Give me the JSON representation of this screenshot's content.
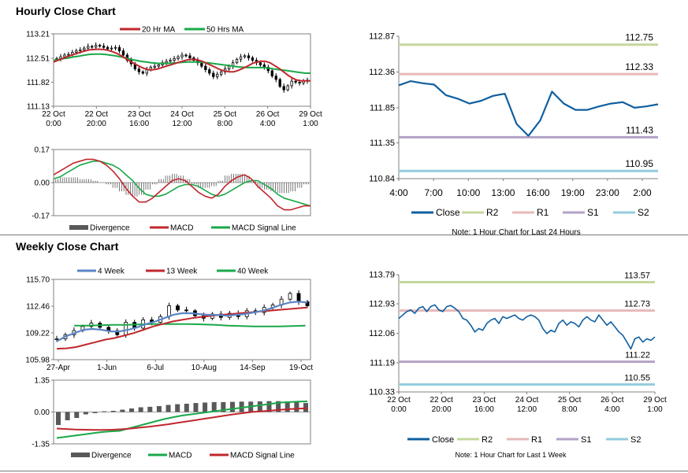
{
  "titles": {
    "hourly": "Hourly Close Chart",
    "weekly": "Weekly Close Chart"
  },
  "colors": {
    "ma20": "#c0272d",
    "ma50": "#1aa84a",
    "wk4": "#5b86c5",
    "wk13": "#c0272d",
    "wk40": "#1aa84a",
    "close": "#0f5fa0",
    "r2": "#c3d89b",
    "r1": "#e6b9b8",
    "s1": "#b3a2c7",
    "s2": "#93cddd",
    "divergence": "#595959",
    "candle": "#000000",
    "grid": "#bfbfbf"
  },
  "chart_data": [
    {
      "id": "hourly-price",
      "type": "candlestick",
      "title": "Hourly Close Chart",
      "y_ticks": [
        "113.21",
        "112.51",
        "111.82",
        "111.13"
      ],
      "ylim": [
        111.13,
        113.21
      ],
      "x_ticks": [
        {
          "date": "22 Oct",
          "time": "0:00"
        },
        {
          "date": "22 Oct",
          "time": "20:00"
        },
        {
          "date": "23 Oct",
          "time": "16:00"
        },
        {
          "date": "24 Oct",
          "time": "12:00"
        },
        {
          "date": "25 Oct",
          "time": "8:00"
        },
        {
          "date": "26 Oct",
          "time": "4:00"
        },
        {
          "date": "29 Oct",
          "time": "1:00"
        }
      ],
      "legend": [
        "20 Hr MA",
        "50 Hrs MA"
      ],
      "close": [
        112.5,
        112.55,
        112.6,
        112.62,
        112.68,
        112.72,
        112.75,
        112.8,
        112.85,
        112.83,
        112.88,
        112.86,
        112.82,
        112.78,
        112.8,
        112.82,
        112.72,
        112.6,
        112.45,
        112.35,
        112.2,
        112.12,
        112.08,
        112.18,
        112.25,
        112.28,
        112.32,
        112.38,
        112.42,
        112.45,
        112.5,
        112.55,
        112.6,
        112.58,
        112.52,
        112.45,
        112.38,
        112.28,
        112.18,
        112.08,
        111.98,
        112.05,
        112.12,
        112.2,
        112.28,
        112.38,
        112.48,
        112.55,
        112.58,
        112.52,
        112.45,
        112.38,
        112.32,
        112.25,
        112.15,
        112.0,
        111.9,
        111.7,
        111.6,
        111.72,
        111.85,
        111.82,
        111.8,
        111.85,
        111.88
      ],
      "ma20": [
        112.4,
        112.45,
        112.5,
        112.55,
        112.6,
        112.64,
        112.68,
        112.72,
        112.75,
        112.76,
        112.77,
        112.76,
        112.74,
        112.7,
        112.65,
        112.58,
        112.5,
        112.42,
        112.35,
        112.28,
        112.22,
        112.18,
        112.18,
        112.2,
        112.24,
        112.28,
        112.32,
        112.36,
        112.4,
        112.44,
        112.47,
        112.48,
        112.46,
        112.42,
        112.36,
        112.3,
        112.24,
        112.18,
        112.14,
        112.12,
        112.12,
        112.16,
        112.22,
        112.28,
        112.35,
        112.4,
        112.42,
        112.42,
        112.38,
        112.3,
        112.22,
        112.12,
        112.02,
        111.94,
        111.88,
        111.86,
        111.86,
        111.86
      ],
      "ma50": [
        112.45,
        112.47,
        112.5,
        112.52,
        112.55,
        112.57,
        112.6,
        112.62,
        112.63,
        112.63,
        112.62,
        112.6,
        112.58,
        112.55,
        112.52,
        112.48,
        112.45,
        112.42,
        112.4,
        112.38,
        112.37,
        112.36,
        112.36,
        112.37,
        112.38,
        112.39,
        112.4,
        112.4,
        112.4,
        112.39,
        112.38,
        112.36,
        112.34,
        112.32,
        112.3,
        112.28,
        112.26,
        112.25,
        112.24,
        112.24,
        112.24,
        112.24,
        112.22,
        112.2,
        112.18,
        112.16,
        112.14,
        112.12,
        112.1,
        112.08,
        112.08
      ]
    },
    {
      "id": "hourly-macd",
      "type": "macd",
      "y_ticks": [
        "0.17",
        "0.00",
        "-0.17"
      ],
      "ylim": [
        -0.17,
        0.17
      ],
      "legend": [
        "Divergence",
        "MACD",
        "MACD Signal Line"
      ],
      "macd": [
        0.04,
        0.06,
        0.08,
        0.1,
        0.11,
        0.12,
        0.12,
        0.11,
        0.09,
        0.06,
        0.02,
        -0.03,
        -0.07,
        -0.1,
        -0.1,
        -0.08,
        -0.05,
        -0.02,
        0.01,
        0.02,
        0.01,
        -0.02,
        -0.05,
        -0.07,
        -0.08,
        -0.06,
        -0.02,
        0.01,
        0.03,
        0.04,
        0.02,
        -0.02,
        -0.05,
        -0.08,
        -0.12,
        -0.14,
        -0.14,
        -0.13,
        -0.12,
        -0.12
      ],
      "signal": [
        0.02,
        0.03,
        0.05,
        0.07,
        0.09,
        0.1,
        0.11,
        0.11,
        0.1,
        0.09,
        0.07,
        0.04,
        0.01,
        -0.03,
        -0.06,
        -0.07,
        -0.07,
        -0.06,
        -0.04,
        -0.02,
        -0.01,
        -0.01,
        -0.02,
        -0.04,
        -0.06,
        -0.07,
        -0.06,
        -0.04,
        -0.02,
        0.0,
        0.01,
        0.01,
        -0.01,
        -0.03,
        -0.06,
        -0.08,
        -0.09,
        -0.1,
        -0.11,
        -0.12
      ]
    },
    {
      "id": "hourly-levels",
      "type": "line",
      "y_ticks": [
        "112.87",
        "112.36",
        "111.85",
        "111.35",
        "110.84"
      ],
      "ylim": [
        110.84,
        112.87
      ],
      "x_ticks": [
        "4:00",
        "7:00",
        "10:00",
        "13:00",
        "16:00",
        "19:00",
        "23:00",
        "2:00"
      ],
      "close": [
        112.17,
        112.23,
        112.2,
        112.18,
        112.03,
        111.98,
        111.91,
        111.95,
        112.02,
        112.05,
        111.62,
        111.45,
        111.67,
        112.08,
        111.91,
        111.82,
        111.82,
        111.87,
        111.91,
        111.93,
        111.85,
        111.87,
        111.9
      ],
      "levels": {
        "R2": 112.75,
        "R1": 112.33,
        "S1": 111.43,
        "S2": 110.95
      },
      "level_labels": {
        "R2": "112.75",
        "R1": "112.33",
        "S1": "111.43",
        "S2": "110.95"
      },
      "legend": [
        "Close",
        "R2",
        "R1",
        "S1",
        "S2"
      ],
      "note": "Note: 1 Hour Chart for Last 24 Hours"
    },
    {
      "id": "weekly-price",
      "type": "candlestick",
      "title": "Weekly Close Chart",
      "y_ticks": [
        "115.70",
        "112.46",
        "109.22",
        "105.98"
      ],
      "ylim": [
        105.98,
        115.7
      ],
      "x_ticks": [
        "27-Apr",
        "1-Jun",
        "6-Jul",
        "10-Aug",
        "14-Sep",
        "19-Oct"
      ],
      "legend": [
        "4 Week",
        "13 Week",
        "40 Week"
      ],
      "close": [
        108.5,
        109.0,
        109.5,
        110.0,
        110.4,
        109.9,
        109.5,
        109.0,
        110.5,
        109.8,
        110.8,
        110.5,
        111.2,
        112.5,
        112.0,
        111.9,
        111.3,
        111.0,
        111.5,
        111.1,
        111.6,
        111.2,
        111.9,
        111.7,
        112.3,
        112.6,
        113.3,
        114.0,
        113.0,
        112.5
      ],
      "wk4": [
        108.2,
        108.8,
        109.2,
        109.6,
        109.7,
        109.6,
        109.4,
        109.4,
        109.6,
        109.9,
        110.3,
        110.6,
        111.0,
        111.4,
        111.6,
        111.6,
        111.5,
        111.4,
        111.4,
        111.3,
        111.4,
        111.5,
        111.7,
        111.9,
        112.2,
        112.6,
        112.9,
        113.0,
        112.9
      ],
      "wk13": [
        107.3,
        107.35,
        107.5,
        107.8,
        108.1,
        108.4,
        108.6,
        108.9,
        109.2,
        109.6,
        110.0,
        110.3,
        110.6,
        110.8,
        111.0,
        111.15,
        111.3,
        111.4,
        111.5,
        111.6,
        111.7,
        111.8,
        111.9,
        112.0,
        112.1,
        112.2,
        112.3
      ],
      "wk40": [
        110.1,
        110.1,
        110.15,
        110.2,
        110.2,
        110.25,
        110.3,
        110.3,
        110.3,
        110.3,
        110.25,
        110.2,
        110.1,
        110.05,
        110.0,
        110.0,
        110.0,
        110.05,
        110.1
      ]
    },
    {
      "id": "weekly-macd",
      "type": "macd",
      "y_ticks": [
        "1.35",
        "0.00",
        "-1.35"
      ],
      "ylim": [
        -1.35,
        1.35
      ],
      "legend": [
        "Divergence",
        "MACD",
        "MACD Signal Line"
      ],
      "divergence": [
        -0.55,
        -0.35,
        -0.25,
        -0.1,
        -0.05,
        0.03,
        0.05,
        0.1,
        0.15,
        0.2,
        0.22,
        0.25,
        0.3,
        0.33,
        0.35,
        0.38,
        0.4,
        0.42,
        0.42,
        0.43,
        0.44,
        0.44,
        0.45,
        0.46,
        0.46,
        0.45,
        0.42,
        0.38
      ],
      "macd": [
        -1.1,
        -1.05,
        -1.0,
        -0.95,
        -0.9,
        -0.85,
        -0.82,
        -0.8,
        -0.7,
        -0.6,
        -0.5,
        -0.4,
        -0.3,
        -0.22,
        -0.15,
        -0.1,
        -0.05,
        0.0,
        0.05,
        0.1,
        0.15,
        0.2,
        0.25,
        0.3,
        0.35,
        0.4,
        0.42,
        0.44,
        0.45
      ],
      "signal": [
        -0.7,
        -0.72,
        -0.74,
        -0.75,
        -0.76,
        -0.76,
        -0.75,
        -0.73,
        -0.7,
        -0.66,
        -0.62,
        -0.57,
        -0.52,
        -0.46,
        -0.4,
        -0.34,
        -0.28,
        -0.22,
        -0.16,
        -0.1,
        -0.05,
        0.0,
        0.03,
        0.06,
        0.09,
        0.12,
        0.14,
        0.16
      ]
    },
    {
      "id": "weekly-levels",
      "type": "line",
      "y_ticks": [
        "113.79",
        "112.93",
        "112.06",
        "111.19",
        "110.33"
      ],
      "ylim": [
        110.33,
        113.79
      ],
      "x_ticks": [
        {
          "date": "22 Oct",
          "time": "0:00"
        },
        {
          "date": "22 Oct",
          "time": "20:00"
        },
        {
          "date": "23 Oct",
          "time": "16:00"
        },
        {
          "date": "24 Oct",
          "time": "12:00"
        },
        {
          "date": "25 Oct",
          "time": "8:00"
        },
        {
          "date": "26 Oct",
          "time": "4:00"
        },
        {
          "date": "29 Oct",
          "time": "1:00"
        }
      ],
      "close": [
        112.5,
        112.6,
        112.7,
        112.75,
        112.65,
        112.8,
        112.85,
        112.7,
        112.85,
        112.9,
        112.75,
        112.7,
        112.85,
        112.88,
        112.8,
        112.7,
        112.5,
        112.45,
        112.3,
        112.1,
        112.2,
        112.15,
        112.35,
        112.45,
        112.5,
        112.35,
        112.55,
        112.5,
        112.55,
        112.6,
        112.5,
        112.45,
        112.55,
        112.6,
        112.55,
        112.45,
        112.2,
        112.05,
        112.15,
        112.1,
        112.35,
        112.45,
        112.3,
        112.4,
        112.35,
        112.25,
        112.45,
        112.55,
        112.45,
        112.4,
        112.6,
        112.45,
        112.3,
        112.4,
        112.25,
        112.1,
        112.0,
        111.8,
        111.6,
        111.9,
        111.95,
        111.8,
        111.9,
        111.85,
        111.95
      ],
      "levels": {
        "R2": 113.57,
        "R1": 112.73,
        "S1": 111.22,
        "S2": 110.55
      },
      "level_labels": {
        "R2": "113.57",
        "R1": "112.73",
        "S1": "111.22",
        "S2": "110.55"
      },
      "legend": [
        "Close",
        "R2",
        "R1",
        "S1",
        "S2"
      ],
      "note": "Note: 1 Hour Chart for Last 1 Week"
    }
  ]
}
